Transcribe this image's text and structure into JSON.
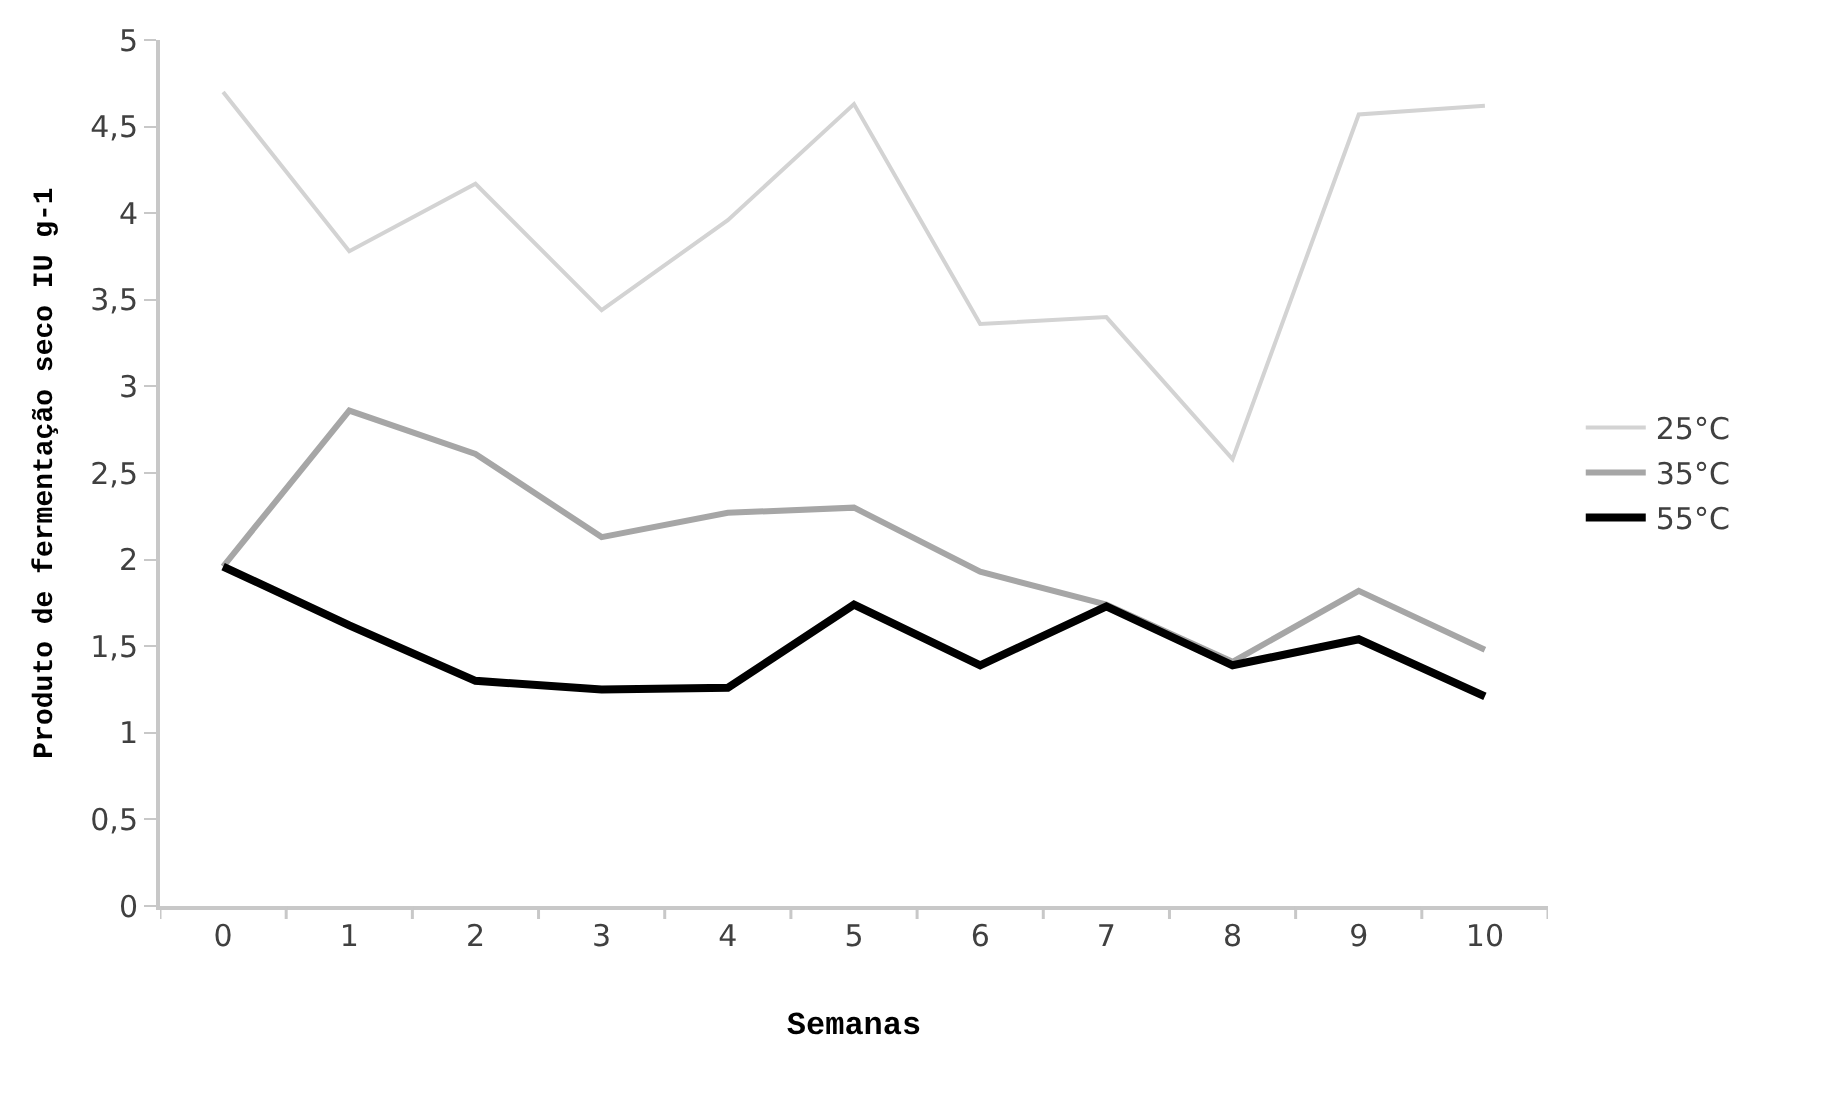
{
  "chart_data": {
    "type": "line",
    "xlabel": "Semanas",
    "ylabel": "Produto de fermentação seco IU g-1",
    "categories": [
      "0",
      "1",
      "2",
      "3",
      "4",
      "5",
      "6",
      "7",
      "8",
      "9",
      "10"
    ],
    "series": [
      {
        "name": "25°C",
        "color": "#d3d3d3",
        "values": [
          4.7,
          3.78,
          4.17,
          3.44,
          3.96,
          4.63,
          3.36,
          3.4,
          2.58,
          4.57,
          4.62
        ]
      },
      {
        "name": "35°C",
        "color": "#a6a6a6",
        "values": [
          1.96,
          2.86,
          2.61,
          2.13,
          2.27,
          2.3,
          1.93,
          1.74,
          1.41,
          1.82,
          1.48
        ]
      },
      {
        "name": "55°C",
        "color": "#000000",
        "values": [
          1.96,
          1.62,
          1.3,
          1.25,
          1.26,
          1.74,
          1.39,
          1.73,
          1.39,
          1.54,
          1.21
        ]
      }
    ],
    "ylim": [
      0,
      5
    ],
    "yticks": [
      0,
      {
        "value": 0.5,
        "label": "0,5"
      },
      1,
      {
        "value": 1.5,
        "label": "1,5"
      },
      2,
      {
        "value": 2.5,
        "label": "2,5"
      },
      3,
      {
        "value": 3.5,
        "label": "3,5"
      },
      4,
      {
        "value": 4.5,
        "label": "4,5"
      },
      5
    ],
    "legend": "right",
    "marker": "none",
    "line_style": "solid"
  }
}
